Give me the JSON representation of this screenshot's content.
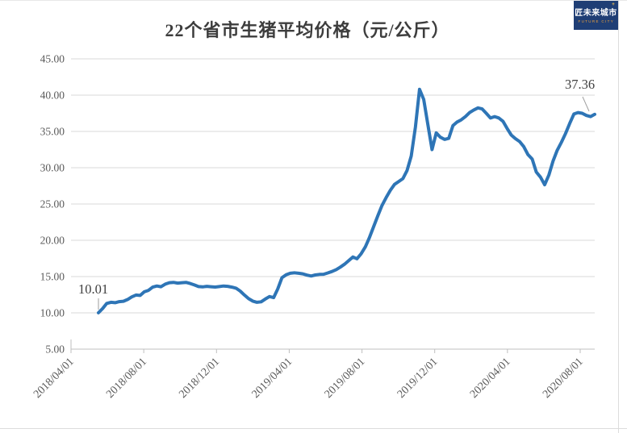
{
  "title": "22个省市生猪平均价格（元/公斤）",
  "logo": {
    "title": "匠未来城市",
    "subtitle": "FUTURE CITY",
    "plus_mark": "+"
  },
  "annotations": {
    "first_point_label": "10.01",
    "last_point_label": "37.36"
  },
  "axes": {
    "y_ticks": [
      "45.00",
      "40.00",
      "35.00",
      "30.00",
      "25.00",
      "20.00",
      "15.00",
      "10.00",
      "5.00"
    ],
    "x_ticks": [
      "2018/04/01",
      "2018/08/01",
      "2018/12/01",
      "2019/04/01",
      "2019/08/01",
      "2019/12/01",
      "2020/04/01",
      "2020/08/01"
    ]
  },
  "colors": {
    "line": "#2e75b6",
    "gridline": "#d9d9d9",
    "axis": "#bfbfbf",
    "tick_text": "#595959",
    "title_text": "#3d3d3d",
    "annotation_text": "#404040",
    "leader": "#9e9e9e",
    "logo_bg": "#1f3e75",
    "logo_accent": "#efa23a"
  },
  "chart_data": {
    "type": "line",
    "title": "22个省市生猪平均价格（元/公斤）",
    "ylabel": "",
    "xlabel": "",
    "ylim": [
      5,
      45
    ],
    "y_step": 5,
    "grid": "horizontal-only",
    "legend": false,
    "series_name": "22个省市生猪平均价格",
    "unit": "元/公斤",
    "first_point": {
      "date": "2018/05/15",
      "value": 10.01
    },
    "last_point": {
      "date": "2020/08/25",
      "value": 37.36
    },
    "peak_point": {
      "date": "2019/11/05",
      "value": 40.8
    },
    "dates": [
      "2018/05/15",
      "2018/05/22",
      "2018/05/29",
      "2018/06/05",
      "2018/06/12",
      "2018/06/19",
      "2018/06/26",
      "2018/07/03",
      "2018/07/10",
      "2018/07/17",
      "2018/07/24",
      "2018/07/31",
      "2018/08/07",
      "2018/08/14",
      "2018/08/21",
      "2018/08/28",
      "2018/09/04",
      "2018/09/11",
      "2018/09/18",
      "2018/09/25",
      "2018/10/02",
      "2018/10/09",
      "2018/10/16",
      "2018/10/23",
      "2018/10/30",
      "2018/11/06",
      "2018/11/13",
      "2018/11/20",
      "2018/11/27",
      "2018/12/04",
      "2018/12/11",
      "2018/12/18",
      "2018/12/25",
      "2019/01/01",
      "2019/01/08",
      "2019/01/15",
      "2019/01/22",
      "2019/01/29",
      "2019/02/05",
      "2019/02/12",
      "2019/02/19",
      "2019/02/26",
      "2019/03/05",
      "2019/03/12",
      "2019/03/19",
      "2019/03/26",
      "2019/04/02",
      "2019/04/09",
      "2019/04/16",
      "2019/04/23",
      "2019/04/30",
      "2019/05/07",
      "2019/05/14",
      "2019/05/21",
      "2019/05/28",
      "2019/06/04",
      "2019/06/11",
      "2019/06/18",
      "2019/06/25",
      "2019/07/02",
      "2019/07/09",
      "2019/07/16",
      "2019/07/23",
      "2019/07/30",
      "2019/08/06",
      "2019/08/13",
      "2019/08/20",
      "2019/08/27",
      "2019/09/03",
      "2019/09/10",
      "2019/09/17",
      "2019/09/24",
      "2019/10/01",
      "2019/10/08",
      "2019/10/15",
      "2019/10/22",
      "2019/10/29",
      "2019/11/05",
      "2019/11/12",
      "2019/11/19",
      "2019/11/26",
      "2019/12/03",
      "2019/12/10",
      "2019/12/17",
      "2019/12/24",
      "2019/12/31",
      "2020/01/07",
      "2020/01/14",
      "2020/01/21",
      "2020/01/28",
      "2020/02/04",
      "2020/02/11",
      "2020/02/18",
      "2020/02/25",
      "2020/03/03",
      "2020/03/10",
      "2020/03/17",
      "2020/03/24",
      "2020/03/31",
      "2020/04/07",
      "2020/04/14",
      "2020/04/21",
      "2020/04/28",
      "2020/05/05",
      "2020/05/12",
      "2020/05/19",
      "2020/05/26",
      "2020/06/02",
      "2020/06/09",
      "2020/06/16",
      "2020/06/23",
      "2020/06/30",
      "2020/07/07",
      "2020/07/14",
      "2020/07/21",
      "2020/07/28",
      "2020/08/04",
      "2020/08/11",
      "2020/08/18",
      "2020/08/25"
    ],
    "values": [
      10.01,
      10.6,
      11.3,
      11.45,
      11.4,
      11.55,
      11.6,
      11.85,
      12.2,
      12.45,
      12.4,
      12.9,
      13.1,
      13.55,
      13.7,
      13.6,
      13.95,
      14.15,
      14.2,
      14.1,
      14.15,
      14.2,
      14.05,
      13.85,
      13.62,
      13.58,
      13.65,
      13.6,
      13.56,
      13.62,
      13.7,
      13.65,
      13.55,
      13.4,
      13.0,
      12.45,
      11.95,
      11.62,
      11.45,
      11.52,
      11.9,
      12.25,
      12.1,
      13.3,
      14.85,
      15.25,
      15.45,
      15.52,
      15.45,
      15.38,
      15.2,
      15.08,
      15.22,
      15.3,
      15.32,
      15.5,
      15.7,
      15.95,
      16.3,
      16.7,
      17.2,
      17.7,
      17.45,
      18.15,
      19.1,
      20.4,
      21.9,
      23.4,
      24.8,
      25.9,
      26.9,
      27.7,
      28.1,
      28.5,
      29.6,
      31.6,
      35.6,
      40.8,
      39.4,
      35.9,
      32.5,
      34.8,
      34.2,
      33.9,
      34.05,
      35.8,
      36.3,
      36.6,
      37.05,
      37.6,
      37.95,
      38.25,
      38.1,
      37.5,
      36.85,
      37.05,
      36.85,
      36.4,
      35.4,
      34.5,
      34.0,
      33.6,
      32.9,
      31.8,
      31.2,
      29.4,
      28.7,
      27.66,
      29.0,
      30.9,
      32.4,
      33.5,
      34.7,
      36.1,
      37.4,
      37.6,
      37.5,
      37.2,
      37.05,
      37.36
    ]
  }
}
